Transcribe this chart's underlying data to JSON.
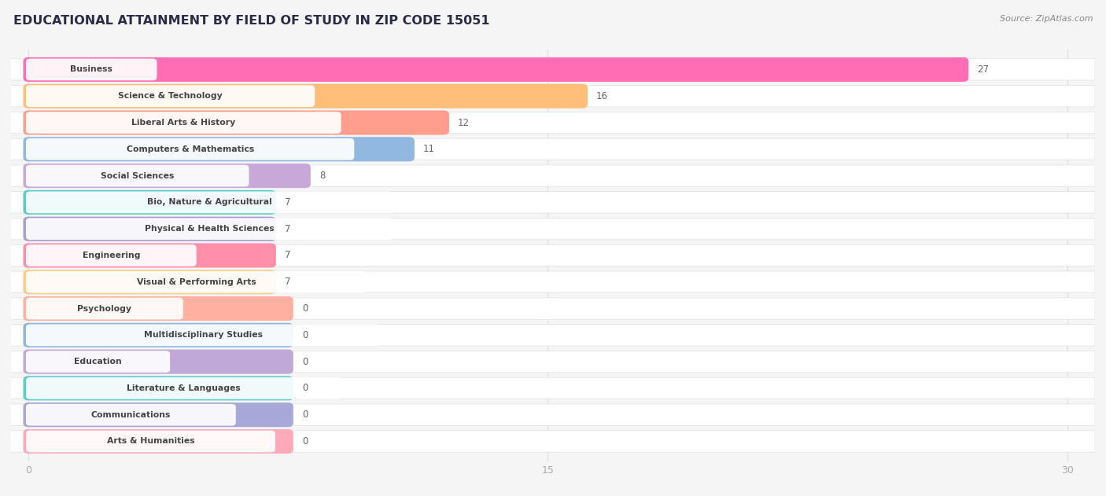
{
  "title": "EDUCATIONAL ATTAINMENT BY FIELD OF STUDY IN ZIP CODE 15051",
  "source": "Source: ZipAtlas.com",
  "categories": [
    "Business",
    "Science & Technology",
    "Liberal Arts & History",
    "Computers & Mathematics",
    "Social Sciences",
    "Bio, Nature & Agricultural",
    "Physical & Health Sciences",
    "Engineering",
    "Visual & Performing Arts",
    "Psychology",
    "Multidisciplinary Studies",
    "Education",
    "Literature & Languages",
    "Communications",
    "Arts & Humanities"
  ],
  "values": [
    27,
    16,
    12,
    11,
    8,
    7,
    7,
    7,
    7,
    0,
    0,
    0,
    0,
    0,
    0
  ],
  "bar_colors": [
    "#FF6EB4",
    "#FFBE7A",
    "#FF9E8C",
    "#90B8E0",
    "#C8A8D8",
    "#5ECEC5",
    "#A8A0D0",
    "#FF8FAB",
    "#FFCC88",
    "#FFB0A0",
    "#90B8DE",
    "#C0A8D8",
    "#5ECEC8",
    "#A8A8D8",
    "#FFAABB"
  ],
  "zero_bar_width": 7.5,
  "xlim_max": 30,
  "xticks": [
    0,
    15,
    30
  ],
  "background_color": "#f5f5f5",
  "row_bg_color": "#ffffff",
  "label_text_color": "#444444",
  "value_label_color": "#666666",
  "title_color": "#2a2a4a",
  "grid_color": "#dddddd"
}
